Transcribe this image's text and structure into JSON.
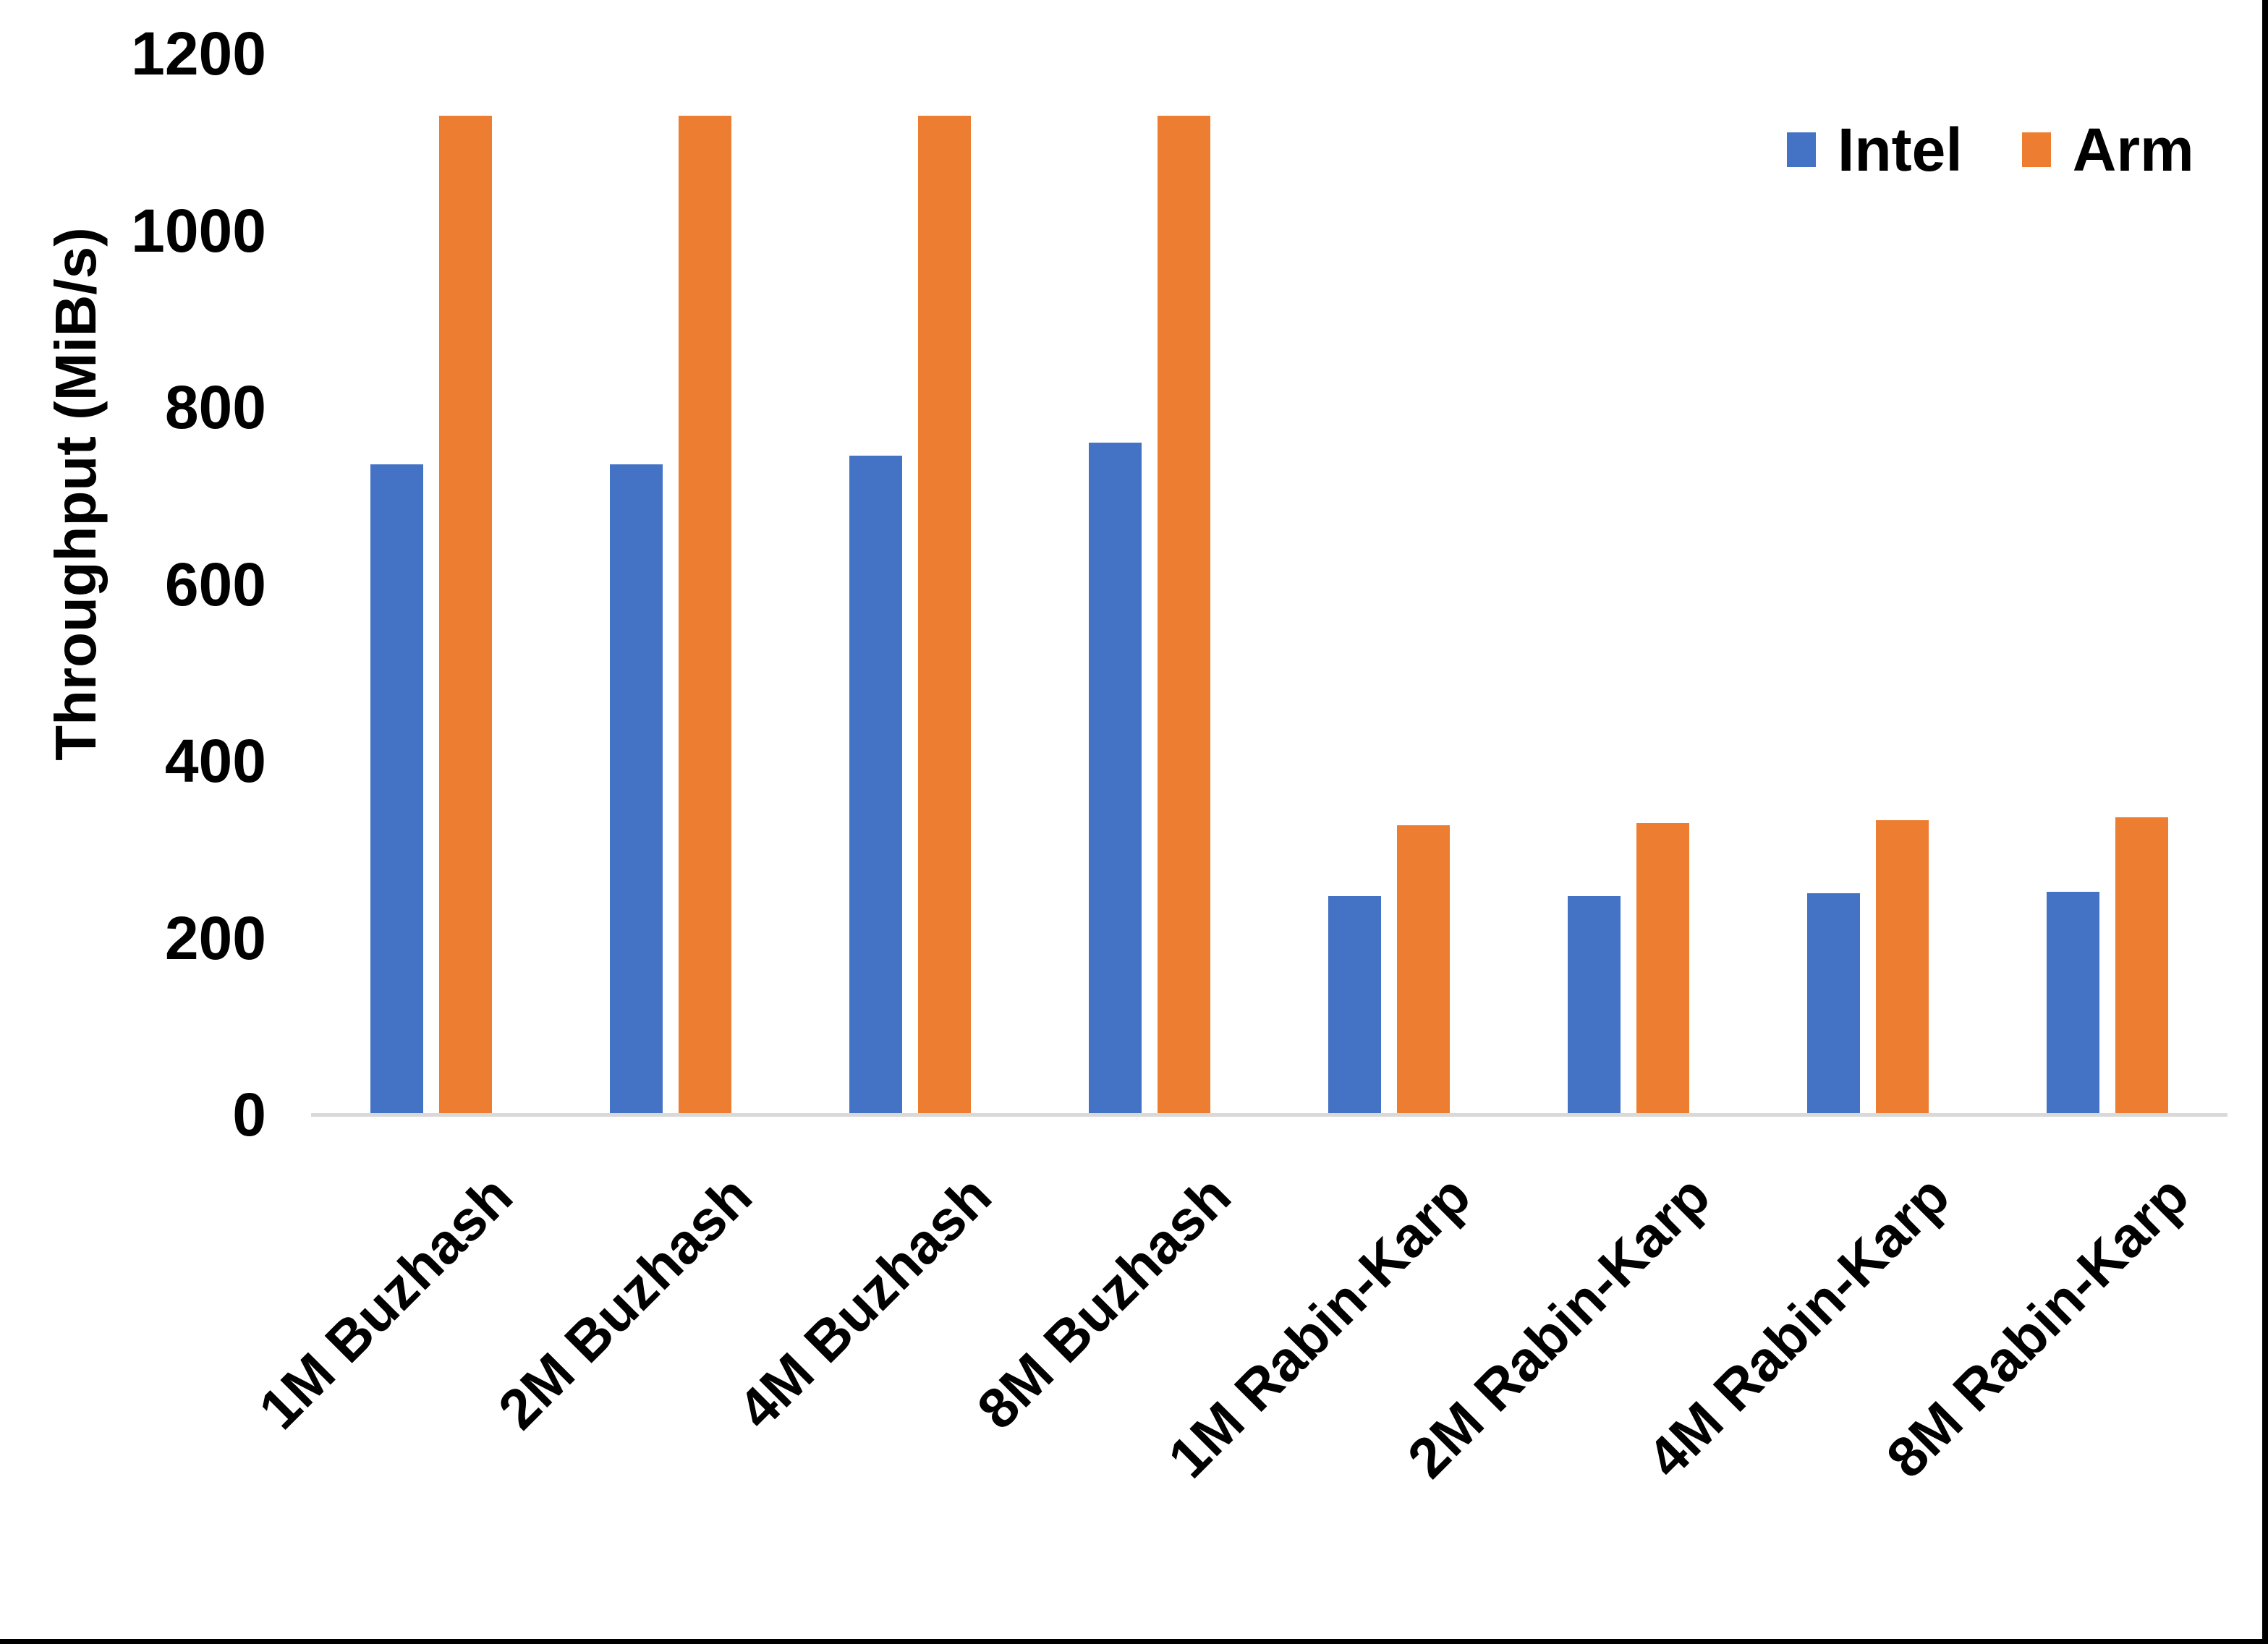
{
  "figure": {
    "background": "#FFFFFF",
    "border_color": "#000000"
  },
  "axis": {
    "baseline_color": "#D9D9D9",
    "text_color": "#000000"
  },
  "chart_data": {
    "type": "bar",
    "title": "",
    "xlabel": "",
    "ylabel": "Throughput (MiB/s)",
    "ylim": [
      0,
      1200
    ],
    "yticks": [
      0,
      200,
      400,
      600,
      800,
      1000,
      1200
    ],
    "grid": "off",
    "legend_position": "top-right",
    "categories": [
      "1M Buzhash",
      "2M Buzhash",
      "4M Buzhash",
      "8M Buzhash",
      "1M Rabin-Karp",
      "2M Rabin-Karp",
      "4M Rabin-Karp",
      "8M Rabin-Karp"
    ],
    "series": [
      {
        "name": "Intel",
        "color": "#4472C4",
        "values": [
          735,
          735,
          745,
          760,
          247,
          247,
          250,
          252
        ]
      },
      {
        "name": "Arm",
        "color": "#ED7D31",
        "values": [
          1130,
          1130,
          1130,
          1130,
          327,
          330,
          333,
          336
        ]
      }
    ]
  }
}
